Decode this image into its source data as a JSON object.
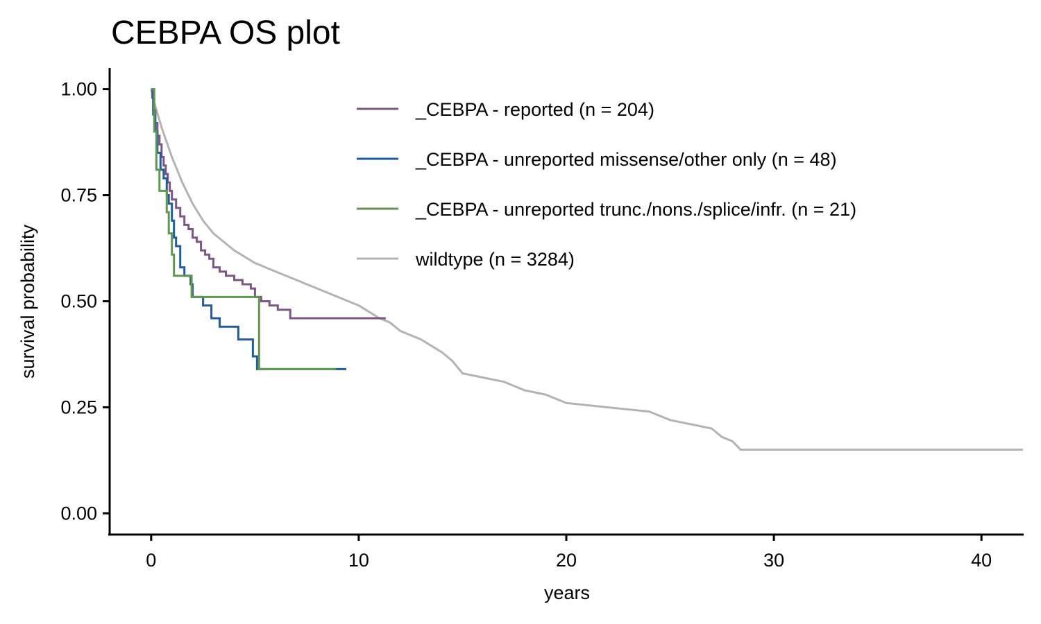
{
  "chart_data": {
    "type": "line",
    "title": "CEBPA OS plot",
    "xlabel": "years",
    "ylabel": "survival probability",
    "xlim": [
      -2,
      42
    ],
    "ylim": [
      -0.05,
      1.05
    ],
    "x_ticks": [
      0,
      10,
      20,
      30,
      40
    ],
    "x_tick_labels": [
      "0",
      "10",
      "20",
      "30",
      "40"
    ],
    "y_ticks": [
      0,
      0.25,
      0.5,
      0.75,
      1
    ],
    "y_tick_labels": [
      "0.00",
      "0.25",
      "0.50",
      "0.75",
      "1.00"
    ],
    "grid": false,
    "legend_position": "top-right",
    "series": [
      {
        "name": "_CEBPA - reported (n = 204)",
        "color": "#7b5686",
        "step": true,
        "points": [
          [
            0,
            1.0
          ],
          [
            0.05,
            0.98
          ],
          [
            0.1,
            0.95
          ],
          [
            0.2,
            0.92
          ],
          [
            0.3,
            0.89
          ],
          [
            0.4,
            0.87
          ],
          [
            0.5,
            0.84
          ],
          [
            0.6,
            0.82
          ],
          [
            0.7,
            0.8
          ],
          [
            0.8,
            0.78
          ],
          [
            0.9,
            0.76
          ],
          [
            1.0,
            0.74
          ],
          [
            1.2,
            0.72
          ],
          [
            1.4,
            0.7
          ],
          [
            1.6,
            0.68
          ],
          [
            1.8,
            0.67
          ],
          [
            2.0,
            0.65
          ],
          [
            2.2,
            0.64
          ],
          [
            2.4,
            0.62
          ],
          [
            2.6,
            0.61
          ],
          [
            2.8,
            0.6
          ],
          [
            3.0,
            0.58
          ],
          [
            3.3,
            0.57
          ],
          [
            3.6,
            0.56
          ],
          [
            4.0,
            0.55
          ],
          [
            4.4,
            0.54
          ],
          [
            4.8,
            0.53
          ],
          [
            5.0,
            0.51
          ],
          [
            5.3,
            0.5
          ],
          [
            5.7,
            0.49
          ],
          [
            6.1,
            0.48
          ],
          [
            6.7,
            0.46
          ],
          [
            11.3,
            0.46
          ]
        ]
      },
      {
        "name": "_CEBPA - unreported missense/other only (n = 48)",
        "color": "#1f5ca3",
        "step": true,
        "points": [
          [
            0,
            1.0
          ],
          [
            0.1,
            0.94
          ],
          [
            0.2,
            0.9
          ],
          [
            0.3,
            0.85
          ],
          [
            0.45,
            0.81
          ],
          [
            0.6,
            0.79
          ],
          [
            0.75,
            0.75
          ],
          [
            0.85,
            0.73
          ],
          [
            1.0,
            0.69
          ],
          [
            1.1,
            0.65
          ],
          [
            1.2,
            0.63
          ],
          [
            1.4,
            0.58
          ],
          [
            1.6,
            0.56
          ],
          [
            1.9,
            0.54
          ],
          [
            2.0,
            0.51
          ],
          [
            2.5,
            0.49
          ],
          [
            2.9,
            0.46
          ],
          [
            3.3,
            0.44
          ],
          [
            4.2,
            0.41
          ],
          [
            4.9,
            0.37
          ],
          [
            5.1,
            0.34
          ],
          [
            9.4,
            0.34
          ]
        ]
      },
      {
        "name": "_CEBPA - unreported trunc./nons./splice/infr. (n = 21)",
        "color": "#5f9a4c",
        "step": true,
        "points": [
          [
            0,
            1.0
          ],
          [
            0.15,
            0.9
          ],
          [
            0.25,
            0.81
          ],
          [
            0.4,
            0.76
          ],
          [
            0.75,
            0.71
          ],
          [
            0.85,
            0.66
          ],
          [
            1.0,
            0.61
          ],
          [
            1.1,
            0.56
          ],
          [
            1.95,
            0.51
          ],
          [
            5.1,
            0.51
          ],
          [
            5.2,
            0.34
          ],
          [
            8.9,
            0.34
          ]
        ]
      },
      {
        "name": "wildtype (n = 3284)",
        "color": "#b3b3b3",
        "step": false,
        "points": [
          [
            0,
            1.0
          ],
          [
            0.2,
            0.96
          ],
          [
            0.5,
            0.91
          ],
          [
            1.0,
            0.84
          ],
          [
            1.5,
            0.78
          ],
          [
            2.0,
            0.73
          ],
          [
            2.5,
            0.69
          ],
          [
            3.0,
            0.66
          ],
          [
            4.0,
            0.62
          ],
          [
            5.0,
            0.59
          ],
          [
            6.0,
            0.57
          ],
          [
            7.0,
            0.55
          ],
          [
            8.0,
            0.53
          ],
          [
            9.0,
            0.51
          ],
          [
            10.0,
            0.49
          ],
          [
            11.0,
            0.46
          ],
          [
            11.5,
            0.45
          ],
          [
            12.0,
            0.43
          ],
          [
            13.0,
            0.41
          ],
          [
            14.0,
            0.38
          ],
          [
            14.5,
            0.36
          ],
          [
            15.0,
            0.33
          ],
          [
            16.0,
            0.32
          ],
          [
            17.0,
            0.31
          ],
          [
            18.0,
            0.29
          ],
          [
            19.0,
            0.28
          ],
          [
            20.0,
            0.26
          ],
          [
            22.0,
            0.25
          ],
          [
            24.0,
            0.24
          ],
          [
            25.0,
            0.22
          ],
          [
            26.0,
            0.21
          ],
          [
            27.0,
            0.2
          ],
          [
            27.5,
            0.18
          ],
          [
            28.0,
            0.17
          ],
          [
            28.4,
            0.15
          ],
          [
            42.0,
            0.15
          ]
        ]
      }
    ]
  }
}
